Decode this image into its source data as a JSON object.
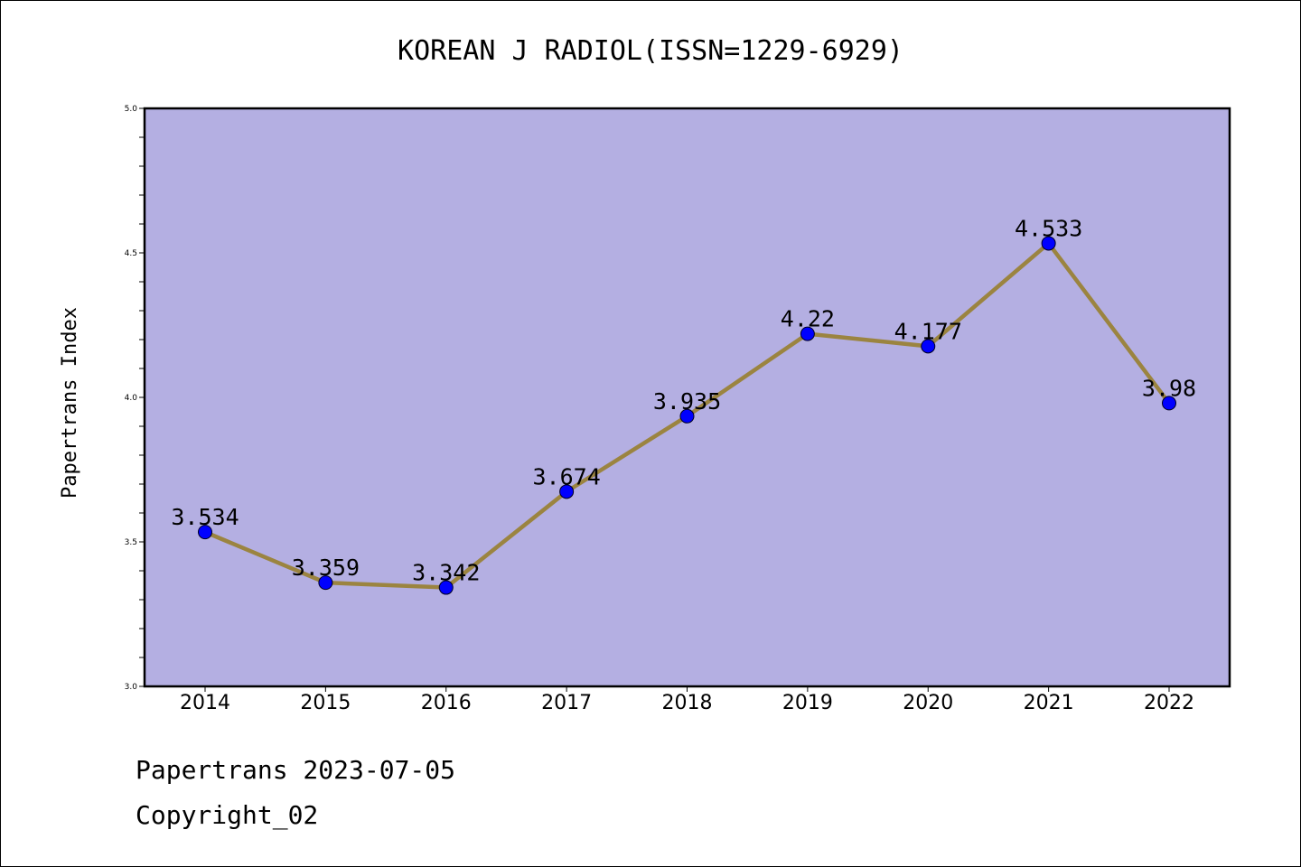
{
  "chart_data": {
    "type": "line",
    "title": "KOREAN J RADIOL(ISSN=1229-6929)",
    "ylabel": "Papertrans Index",
    "xlabel": "",
    "categories": [
      "2014",
      "2015",
      "2016",
      "2017",
      "2018",
      "2019",
      "2020",
      "2021",
      "2022"
    ],
    "values": [
      3.534,
      3.359,
      3.342,
      3.674,
      3.935,
      4.22,
      4.177,
      4.533,
      3.98
    ],
    "data_labels": [
      "3.534",
      "3.359",
      "3.342",
      "3.674",
      "3.935",
      "4.22",
      "4.177",
      "4.533",
      "3.98"
    ],
    "ylim": [
      3.0,
      5.0
    ],
    "yticks": [
      "3.0",
      "3.5",
      "4.0",
      "4.5",
      "5.0"
    ],
    "grid": false,
    "colors": {
      "plot_background": "#b4afe2",
      "line": "#9b8440",
      "marker": "#0000ff"
    }
  },
  "footer": {
    "line1": "Papertrans 2023-07-05",
    "line2": "Copyright_02"
  }
}
